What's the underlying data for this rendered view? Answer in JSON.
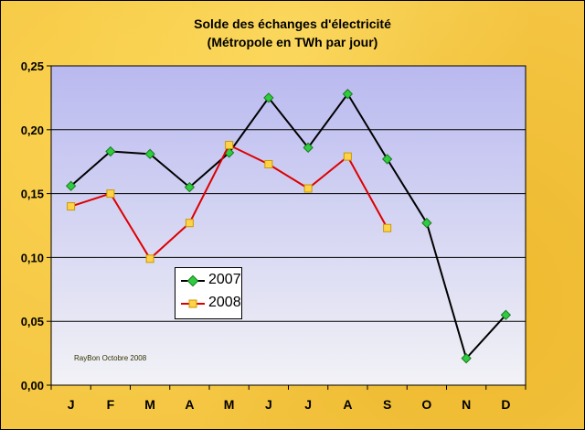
{
  "title_line1": "Solde des échanges d'électricité",
  "title_line2": "(Métropole en TWh par jour)",
  "watermark": "RayBon Octobre 2008",
  "colors": {
    "frame_background": "#f4c542",
    "plot_top": "#b9b9f0",
    "plot_bottom": "#f2f2f6",
    "series_2007_line": "#000000",
    "series_2007_marker": "#2ecc40",
    "series_2008_line": "#dd0000",
    "series_2008_marker": "#ffd24a"
  },
  "chart_data": {
    "type": "line",
    "title": "Solde des échanges d'électricité (Métropole en TWh par jour)",
    "xlabel": "",
    "ylabel": "",
    "categories": [
      "J",
      "F",
      "M",
      "A",
      "M",
      "J",
      "J",
      "A",
      "S",
      "O",
      "N",
      "D"
    ],
    "ylim": [
      0,
      0.25
    ],
    "yticks": [
      0,
      0.05,
      0.1,
      0.15,
      0.2,
      0.25
    ],
    "ytick_labels": [
      "0,00",
      "0,05",
      "0,10",
      "0,15",
      "0,20",
      "0,25"
    ],
    "grid": true,
    "legend_position": "lower-left inside plot",
    "series": [
      {
        "name": "2007",
        "values": [
          0.156,
          0.183,
          0.181,
          0.155,
          0.182,
          0.225,
          0.186,
          0.228,
          0.177,
          0.127,
          0.021,
          0.055
        ],
        "line_color": "#000000",
        "marker": "diamond",
        "marker_color": "#2ecc40"
      },
      {
        "name": "2008",
        "values": [
          0.14,
          0.15,
          0.099,
          0.127,
          0.188,
          0.173,
          0.154,
          0.179,
          0.123,
          null,
          null,
          null
        ],
        "line_color": "#dd0000",
        "marker": "square",
        "marker_color": "#ffd24a"
      }
    ]
  }
}
